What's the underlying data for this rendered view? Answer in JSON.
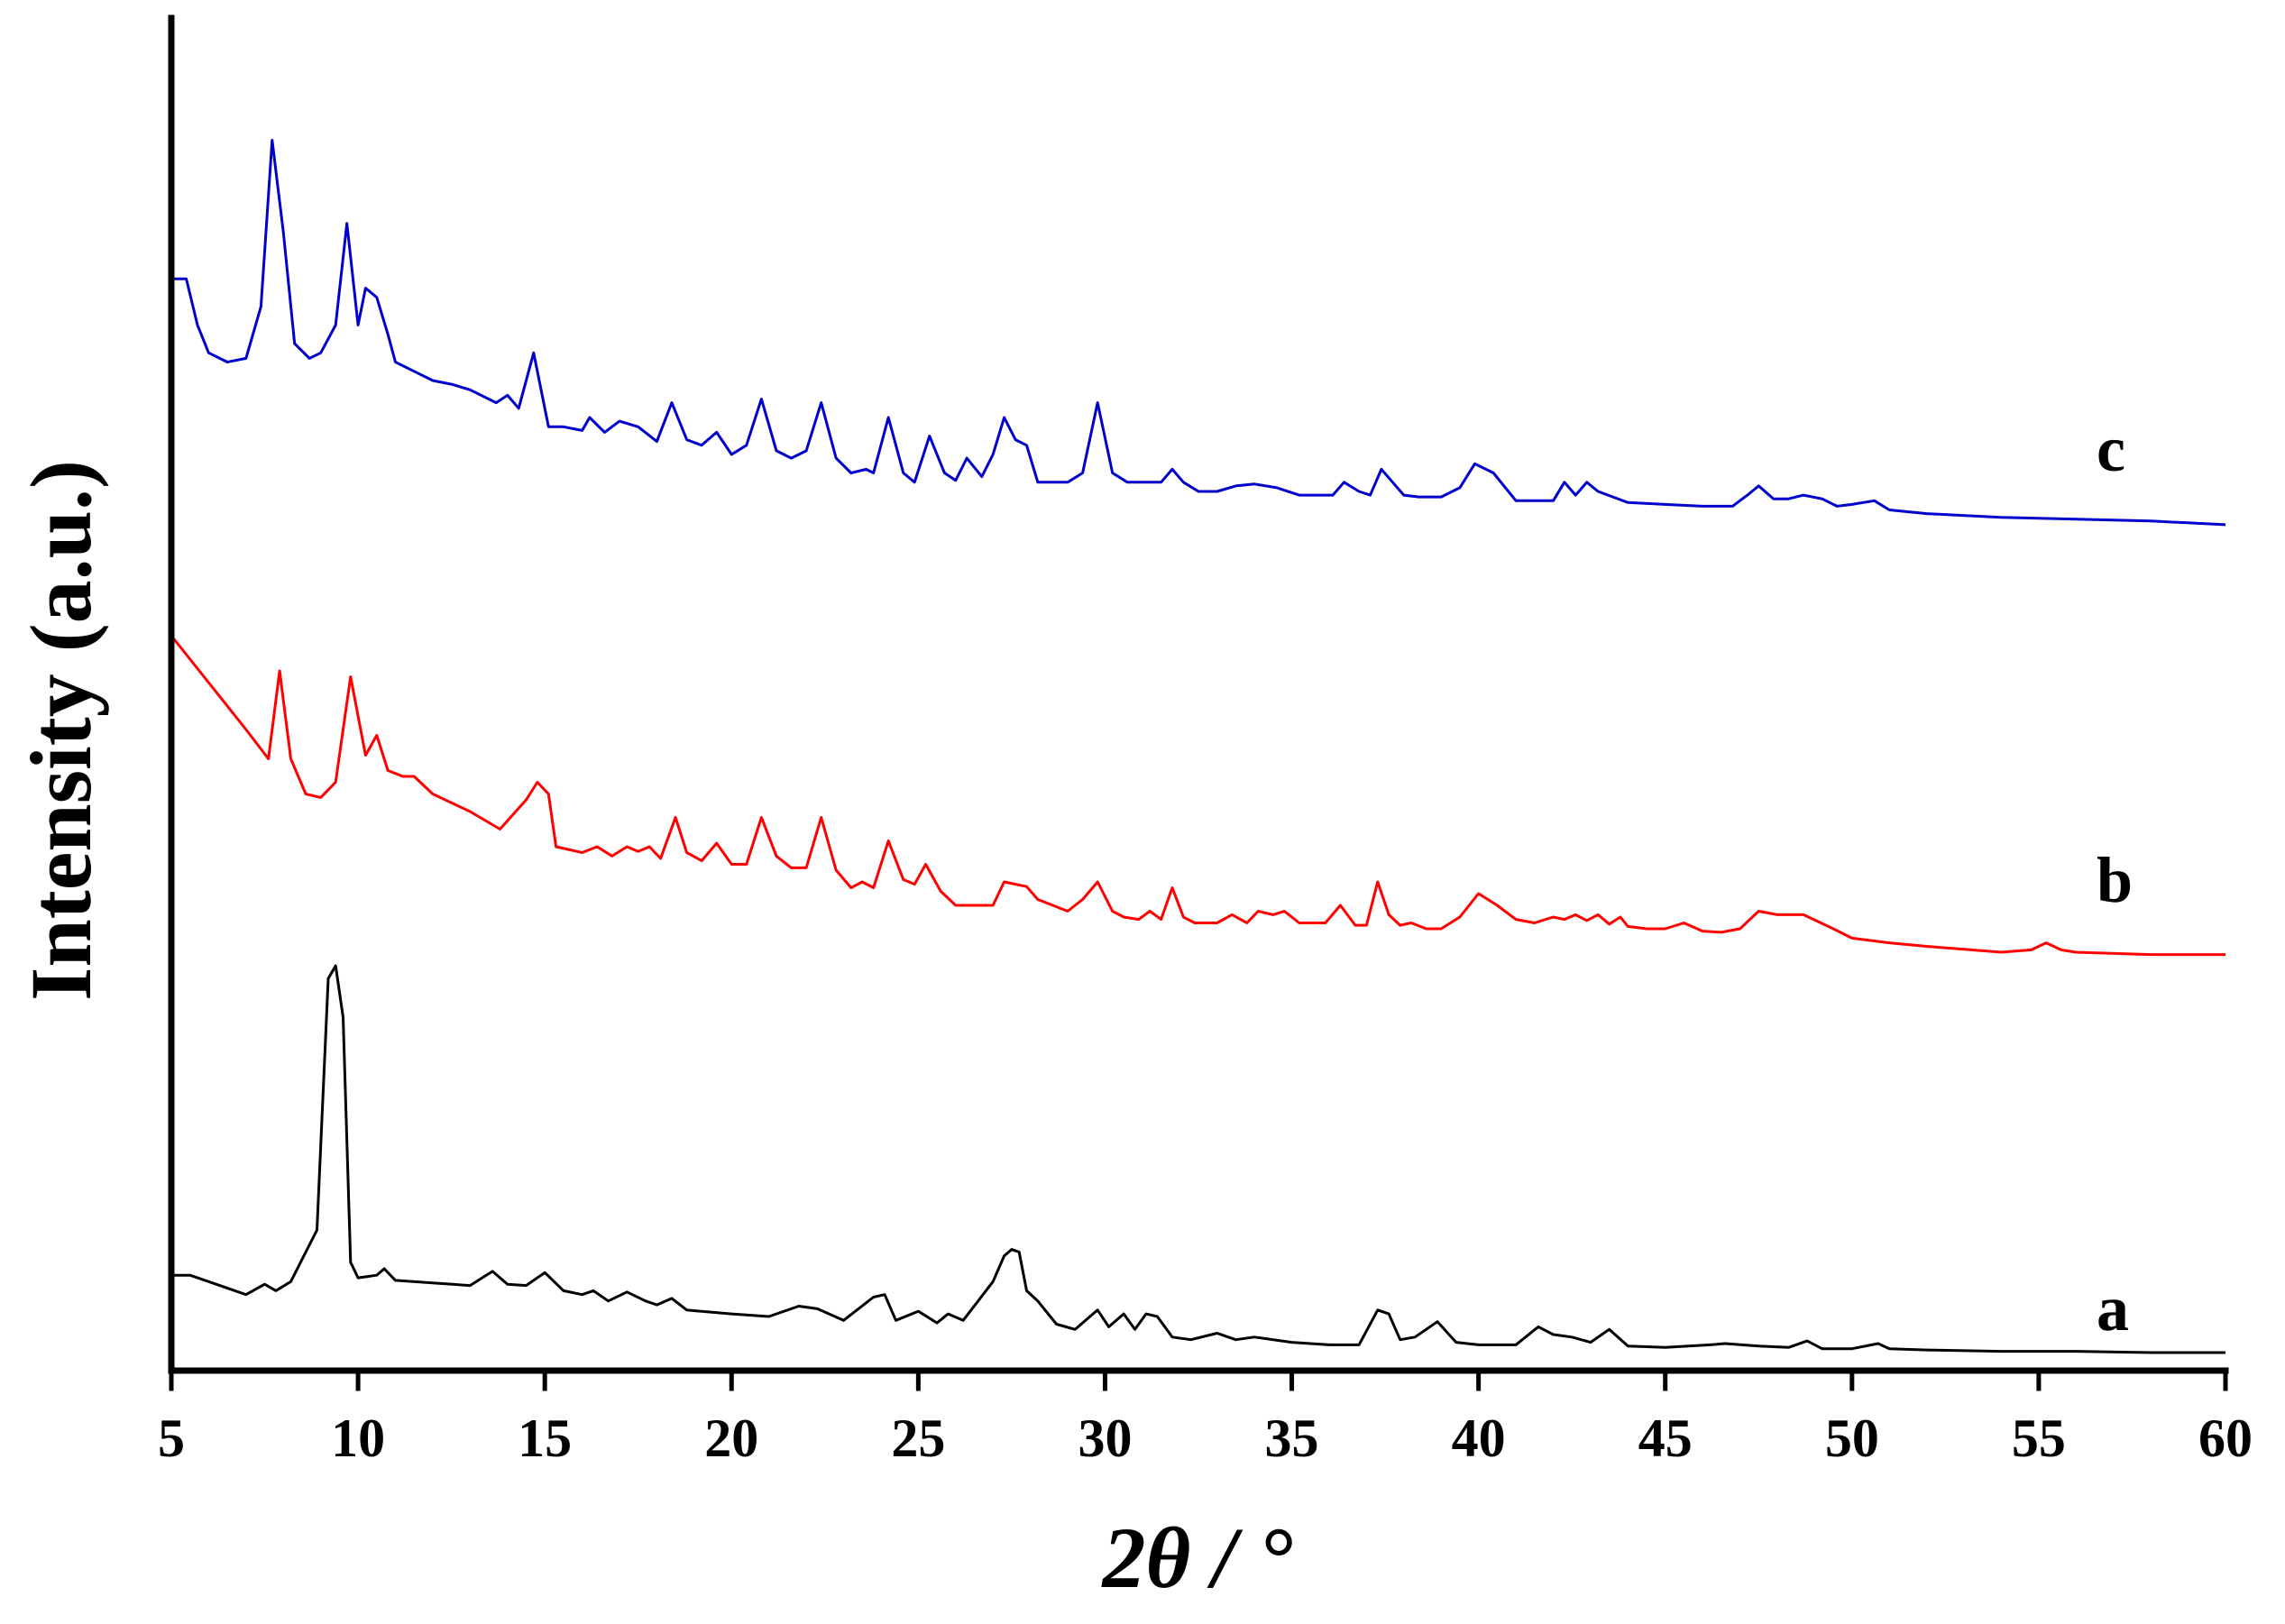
{
  "chart_data": {
    "type": "line",
    "title": "",
    "xlabel": "2θ / °",
    "ylabel": "Intensity (a.u.)",
    "xlim": [
      5,
      60
    ],
    "xticks": [
      5,
      10,
      15,
      20,
      25,
      30,
      35,
      40,
      45,
      50,
      55,
      60
    ],
    "yticks": [],
    "grid": false,
    "legend": "none",
    "series": [
      {
        "name": "a",
        "color": "#000000",
        "x": [
          5.0,
          5.5,
          6.0,
          7.0,
          7.5,
          7.8,
          8.2,
          8.6,
          8.9,
          9.2,
          9.4,
          9.6,
          9.8,
          10.0,
          10.5,
          10.7,
          11.0,
          12.0,
          13.0,
          13.6,
          14.0,
          14.5,
          15.0,
          15.5,
          16.0,
          16.3,
          16.7,
          17.2,
          17.7,
          18.0,
          18.4,
          18.8,
          20.0,
          21.0,
          21.8,
          22.3,
          23.0,
          23.8,
          24.1,
          24.4,
          25.0,
          25.5,
          25.8,
          26.2,
          27.0,
          27.3,
          27.5,
          27.7,
          27.9,
          28.2,
          28.7,
          29.2,
          29.8,
          30.1,
          30.5,
          30.8,
          31.1,
          31.4,
          31.8,
          32.3,
          33.0,
          33.5,
          34.0,
          35.0,
          36.0,
          36.8,
          37.3,
          37.6,
          37.9,
          38.3,
          38.9,
          39.4,
          40.0,
          41.0,
          41.6,
          42.0,
          42.5,
          43.0,
          43.5,
          44.0,
          45.0,
          46.2,
          46.6,
          47.5,
          48.3,
          48.8,
          49.2,
          50.0,
          50.7,
          51.0,
          52.0,
          54.0,
          56.0,
          58.0,
          60.0
        ],
        "y": [
          60,
          60,
          55,
          45,
          53,
          48,
          55,
          78,
          95,
          290,
          300,
          260,
          70,
          58,
          60,
          65,
          56,
          54,
          52,
          63,
          53,
          52,
          62,
          48,
          45,
          48,
          40,
          47,
          40,
          37,
          42,
          33,
          30,
          28,
          36,
          34,
          25,
          43,
          45,
          25,
          32,
          23,
          30,
          25,
          55,
          75,
          80,
          78,
          48,
          40,
          22,
          18,
          33,
          20,
          30,
          18,
          30,
          28,
          12,
          10,
          15,
          10,
          12,
          8,
          6,
          6,
          33,
          30,
          10,
          12,
          24,
          8,
          6,
          6,
          20,
          14,
          12,
          8,
          18,
          5,
          4,
          6,
          7,
          5,
          4,
          9,
          3,
          3,
          7,
          3,
          2,
          1,
          1,
          0,
          0
        ]
      },
      {
        "name": "b",
        "color": "#ff0000",
        "x": [
          5.0,
          6.0,
          7.0,
          7.6,
          7.9,
          8.2,
          8.6,
          9.0,
          9.4,
          9.8,
          10.2,
          10.5,
          10.8,
          11.2,
          11.5,
          12.0,
          13.0,
          13.8,
          14.5,
          14.8,
          15.1,
          15.3,
          16.0,
          16.4,
          16.8,
          17.2,
          17.5,
          17.8,
          18.1,
          18.5,
          18.8,
          19.2,
          19.6,
          20.0,
          20.4,
          20.8,
          21.2,
          21.6,
          22.0,
          22.4,
          22.8,
          23.2,
          23.5,
          23.8,
          24.2,
          24.6,
          24.9,
          25.2,
          25.6,
          26.0,
          27.0,
          27.3,
          27.6,
          27.9,
          28.2,
          28.6,
          29.0,
          29.4,
          29.8,
          30.2,
          30.5,
          30.9,
          31.2,
          31.5,
          31.8,
          32.1,
          32.4,
          33.0,
          33.4,
          33.8,
          34.1,
          34.5,
          34.8,
          35.2,
          35.5,
          35.9,
          36.3,
          36.7,
          37.0,
          37.3,
          37.6,
          37.9,
          38.2,
          38.6,
          39.0,
          39.5,
          40.0,
          40.5,
          41.0,
          41.5,
          42.0,
          42.3,
          42.6,
          42.9,
          43.2,
          43.5,
          43.8,
          44.0,
          44.5,
          45.0,
          45.5,
          46.0,
          46.5,
          47.0,
          47.5,
          48.0,
          48.7,
          49.5,
          50.0,
          50.5,
          51.0,
          52.0,
          54.0,
          54.8,
          55.2,
          55.6,
          56.0,
          58.0,
          60.0
        ],
        "y": [
          250,
          210,
          170,
          145,
          220,
          145,
          115,
          112,
          125,
          215,
          148,
          165,
          135,
          130,
          130,
          115,
          100,
          85,
          110,
          125,
          115,
          70,
          65,
          70,
          62,
          70,
          66,
          70,
          60,
          95,
          65,
          58,
          73,
          55,
          55,
          95,
          62,
          52,
          52,
          95,
          50,
          35,
          40,
          35,
          75,
          42,
          38,
          55,
          32,
          20,
          20,
          40,
          38,
          36,
          25,
          20,
          15,
          25,
          40,
          15,
          10,
          8,
          15,
          8,
          35,
          10,
          5,
          5,
          12,
          5,
          15,
          12,
          15,
          5,
          5,
          5,
          20,
          3,
          3,
          40,
          12,
          3,
          5,
          0,
          0,
          10,
          30,
          20,
          8,
          5,
          10,
          8,
          12,
          7,
          12,
          4,
          10,
          2,
          0,
          0,
          5,
          -2,
          -3,
          0,
          15,
          12,
          12,
          0,
          -8,
          -10,
          -12,
          -15,
          -20,
          -18,
          -12,
          -18,
          -20,
          -22,
          -22
        ]
      },
      {
        "name": "c",
        "color": "#0000cc",
        "x": [
          5.0,
          5.4,
          5.7,
          6.0,
          6.5,
          7.0,
          7.4,
          7.7,
          8.0,
          8.3,
          8.7,
          9.0,
          9.4,
          9.7,
          10.0,
          10.2,
          10.5,
          10.8,
          11.0,
          11.5,
          12.0,
          12.5,
          13.0,
          13.7,
          14.0,
          14.3,
          14.7,
          15.1,
          15.5,
          16.0,
          16.2,
          16.6,
          17.0,
          17.5,
          18.0,
          18.4,
          18.8,
          19.2,
          19.6,
          20.0,
          20.4,
          20.8,
          21.2,
          21.6,
          22.0,
          22.4,
          22.8,
          23.2,
          23.6,
          23.8,
          24.2,
          24.6,
          24.9,
          25.3,
          25.7,
          26.0,
          26.3,
          26.7,
          27.0,
          27.3,
          27.6,
          27.9,
          28.2,
          28.6,
          29.0,
          29.4,
          29.8,
          30.2,
          30.6,
          31.0,
          31.5,
          31.8,
          32.1,
          32.5,
          33.0,
          33.5,
          34.0,
          34.6,
          35.2,
          35.8,
          36.1,
          36.4,
          36.8,
          37.1,
          37.4,
          37.7,
          38.0,
          38.4,
          39.0,
          39.5,
          39.9,
          40.4,
          41.0,
          42.0,
          42.3,
          42.6,
          42.9,
          43.2,
          43.6,
          44.0,
          45.0,
          46.0,
          46.8,
          47.2,
          47.5,
          47.9,
          48.3,
          48.7,
          49.2,
          49.6,
          50.0,
          50.3,
          50.6,
          51.0,
          52.0,
          54.0,
          56.0,
          58.0,
          60.0
        ],
        "y": [
          115,
          115,
          90,
          75,
          70,
          72,
          100,
          190,
          140,
          80,
          72,
          75,
          90,
          145,
          90,
          110,
          105,
          85,
          70,
          65,
          60,
          58,
          55,
          48,
          52,
          45,
          75,
          35,
          35,
          33,
          40,
          32,
          38,
          35,
          27,
          48,
          28,
          25,
          32,
          20,
          25,
          50,
          22,
          18,
          22,
          48,
          18,
          10,
          12,
          10,
          40,
          10,
          5,
          30,
          10,
          6,
          18,
          8,
          20,
          40,
          28,
          25,
          5,
          5,
          5,
          10,
          48,
          10,
          5,
          5,
          5,
          12,
          5,
          0,
          0,
          3,
          4,
          2,
          -2,
          -2,
          -2,
          5,
          0,
          -2,
          12,
          5,
          -2,
          -3,
          -3,
          2,
          15,
          10,
          -5,
          -5,
          5,
          -2,
          5,
          0,
          -3,
          -6,
          -7,
          -8,
          -8,
          -2,
          3,
          -4,
          -4,
          -2,
          -4,
          -8,
          -7,
          -6,
          -5,
          -10,
          -12,
          -14,
          -15,
          -16,
          -18
        ]
      }
    ],
    "annotations": [
      "c",
      "b",
      "a"
    ]
  }
}
